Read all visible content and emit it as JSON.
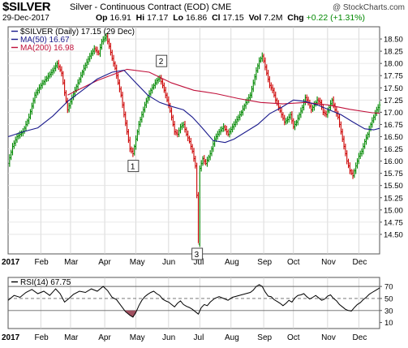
{
  "header": {
    "symbol": "$SILVER",
    "description": "Silver - Continuous Contract (EOD)",
    "exchange": "CME",
    "brand": "@ StockCharts.com",
    "date": "29-Dec-2017",
    "open_label": "Op",
    "open": "16.91",
    "high_label": "Hi",
    "high": "17.17",
    "low_label": "Lo",
    "low": "16.86",
    "close_label": "Cl",
    "close": "17.15",
    "volume_label": "Vol",
    "volume": "7.2M",
    "change_label": "Chg",
    "change": "+0.22 (+1.31%)"
  },
  "colors": {
    "price_bars_up": "#008800",
    "price_bars_down": "#cc0000",
    "ma50": "#1a1a8c",
    "ma200": "#c0103a",
    "rsi_line": "#000000",
    "rsi_oversold_fill": "#a05060"
  },
  "chart_data": [
    {
      "type": "line",
      "title": "$SILVER (Daily) 17.15 (29 Dec)",
      "legend": [
        {
          "name": "$SILVER (Daily) 17.15 (29 Dec)",
          "color": "#1a1a8c"
        },
        {
          "name": "MA(50) 16.67",
          "color": "#1a1a8c"
        },
        {
          "name": "MA(200) 16.98",
          "color": "#c0103a"
        }
      ],
      "ylim": [
        14.1,
        18.75
      ],
      "yticks": [
        "14.50",
        "14.75",
        "15.00",
        "15.25",
        "15.50",
        "15.75",
        "16.00",
        "16.25",
        "16.50",
        "16.75",
        "17.00",
        "17.25",
        "17.50",
        "17.75",
        "18.00",
        "18.25",
        "18.50"
      ],
      "xticks": [
        "2017",
        "Feb",
        "Mar",
        "Apr",
        "May",
        "Jun",
        "Jul",
        "Aug",
        "Sep",
        "Oct",
        "Nov",
        "Dec"
      ],
      "x_index": [
        0,
        22,
        42,
        65,
        86,
        108,
        129,
        150,
        172,
        192,
        215,
        236,
        250
      ],
      "price": [
        [
          0,
          15.95
        ],
        [
          3,
          16.3
        ],
        [
          6,
          16.5
        ],
        [
          10,
          16.6
        ],
        [
          14,
          16.9
        ],
        [
          18,
          17.35
        ],
        [
          22,
          17.55
        ],
        [
          26,
          17.7
        ],
        [
          30,
          17.85
        ],
        [
          33,
          18.0
        ],
        [
          36,
          17.8
        ],
        [
          38,
          17.4
        ],
        [
          40,
          17.05
        ],
        [
          43,
          17.3
        ],
        [
          47,
          17.6
        ],
        [
          51,
          17.9
        ],
        [
          55,
          18.15
        ],
        [
          58,
          18.3
        ],
        [
          61,
          18.2
        ],
        [
          63,
          18.45
        ],
        [
          66,
          18.55
        ],
        [
          68,
          18.35
        ],
        [
          70,
          18.1
        ],
        [
          72,
          17.9
        ],
        [
          74,
          17.6
        ],
        [
          76,
          17.35
        ],
        [
          78,
          16.95
        ],
        [
          80,
          16.6
        ],
        [
          82,
          16.25
        ],
        [
          84,
          16.15
        ],
        [
          86,
          16.45
        ],
        [
          88,
          16.75
        ],
        [
          90,
          16.95
        ],
        [
          92,
          17.15
        ],
        [
          94,
          17.3
        ],
        [
          96,
          17.45
        ],
        [
          98,
          17.55
        ],
        [
          100,
          17.65
        ],
        [
          102,
          17.7
        ],
        [
          104,
          17.55
        ],
        [
          106,
          17.35
        ],
        [
          108,
          17.15
        ],
        [
          110,
          16.9
        ],
        [
          112,
          16.6
        ],
        [
          114,
          16.55
        ],
        [
          116,
          16.7
        ],
        [
          118,
          16.75
        ],
        [
          120,
          16.55
        ],
        [
          122,
          16.4
        ],
        [
          124,
          16.2
        ],
        [
          126,
          15.9
        ],
        [
          127,
          15.3
        ],
        [
          128,
          14.3
        ],
        [
          129,
          15.85
        ],
        [
          131,
          16.05
        ],
        [
          133,
          15.95
        ],
        [
          136,
          16.15
        ],
        [
          139,
          16.45
        ],
        [
          142,
          16.6
        ],
        [
          145,
          16.7
        ],
        [
          148,
          16.55
        ],
        [
          151,
          16.7
        ],
        [
          154,
          16.85
        ],
        [
          157,
          17.0
        ],
        [
          160,
          17.2
        ],
        [
          163,
          17.35
        ],
        [
          165,
          17.6
        ],
        [
          167,
          17.85
        ],
        [
          169,
          18.05
        ],
        [
          171,
          18.15
        ],
        [
          172,
          18.05
        ],
        [
          174,
          17.8
        ],
        [
          176,
          17.55
        ],
        [
          178,
          17.45
        ],
        [
          180,
          17.25
        ],
        [
          182,
          17.1
        ],
        [
          184,
          16.95
        ],
        [
          186,
          16.8
        ],
        [
          188,
          16.85
        ],
        [
          190,
          16.95
        ],
        [
          192,
          16.7
        ],
        [
          194,
          16.8
        ],
        [
          196,
          16.95
        ],
        [
          198,
          17.1
        ],
        [
          200,
          17.3
        ],
        [
          202,
          17.2
        ],
        [
          204,
          17.05
        ],
        [
          206,
          17.15
        ],
        [
          208,
          17.25
        ],
        [
          210,
          17.2
        ],
        [
          212,
          17.0
        ],
        [
          214,
          16.95
        ],
        [
          216,
          17.1
        ],
        [
          218,
          17.25
        ],
        [
          220,
          17.05
        ],
        [
          222,
          16.9
        ],
        [
          224,
          16.6
        ],
        [
          226,
          16.3
        ],
        [
          228,
          16.0
        ],
        [
          230,
          15.8
        ],
        [
          232,
          15.7
        ],
        [
          234,
          15.9
        ],
        [
          236,
          16.1
        ],
        [
          238,
          16.2
        ],
        [
          240,
          16.4
        ],
        [
          242,
          16.55
        ],
        [
          244,
          16.75
        ],
        [
          246,
          16.9
        ],
        [
          248,
          17.05
        ],
        [
          250,
          17.15
        ]
      ],
      "ma50": [
        [
          0,
          16.5
        ],
        [
          10,
          16.6
        ],
        [
          20,
          16.68
        ],
        [
          30,
          16.92
        ],
        [
          40,
          17.22
        ],
        [
          50,
          17.45
        ],
        [
          60,
          17.68
        ],
        [
          70,
          17.82
        ],
        [
          78,
          17.86
        ],
        [
          86,
          17.6
        ],
        [
          94,
          17.35
        ],
        [
          102,
          17.2
        ],
        [
          110,
          17.12
        ],
        [
          118,
          17.05
        ],
        [
          124,
          16.9
        ],
        [
          130,
          16.7
        ],
        [
          138,
          16.42
        ],
        [
          146,
          16.38
        ],
        [
          152,
          16.45
        ],
        [
          160,
          16.6
        ],
        [
          168,
          16.75
        ],
        [
          176,
          16.97
        ],
        [
          184,
          17.1
        ],
        [
          192,
          17.25
        ],
        [
          200,
          17.22
        ],
        [
          208,
          17.15
        ],
        [
          216,
          17.05
        ],
        [
          224,
          16.95
        ],
        [
          232,
          16.8
        ],
        [
          240,
          16.66
        ],
        [
          246,
          16.64
        ],
        [
          250,
          16.67
        ]
      ],
      "ma200": [
        [
          40,
          17.35
        ],
        [
          60,
          17.65
        ],
        [
          80,
          17.88
        ],
        [
          95,
          17.82
        ],
        [
          110,
          17.6
        ],
        [
          125,
          17.45
        ],
        [
          140,
          17.38
        ],
        [
          155,
          17.28
        ],
        [
          170,
          17.2
        ],
        [
          185,
          17.17
        ],
        [
          200,
          17.2
        ],
        [
          215,
          17.15
        ],
        [
          230,
          17.06
        ],
        [
          245,
          16.99
        ],
        [
          250,
          16.98
        ]
      ],
      "annotations": [
        {
          "label": "1",
          "x": 84,
          "y": 15.9
        },
        {
          "label": "2",
          "x": 103,
          "y": 18.05
        },
        {
          "label": "3",
          "x": 127,
          "y": 14.1
        }
      ]
    },
    {
      "type": "line",
      "title": "RSI(14) 67.75",
      "legend": [
        {
          "name": "RSI(14) 67.75",
          "color": "#000000"
        }
      ],
      "ylim": [
        0,
        85
      ],
      "yticks": [
        "10",
        "30",
        "50",
        "70"
      ],
      "xticks": [
        "2017",
        "Feb",
        "Mar",
        "Apr",
        "May",
        "Jun",
        "Jul",
        "Aug",
        "Sep",
        "Oct",
        "Nov",
        "Dec"
      ],
      "reference_lines": [
        30,
        50,
        70
      ],
      "rsi": [
        [
          0,
          47
        ],
        [
          4,
          55
        ],
        [
          8,
          52
        ],
        [
          12,
          60
        ],
        [
          16,
          65
        ],
        [
          20,
          58
        ],
        [
          24,
          62
        ],
        [
          28,
          55
        ],
        [
          32,
          66
        ],
        [
          35,
          58
        ],
        [
          38,
          44
        ],
        [
          41,
          50
        ],
        [
          44,
          57
        ],
        [
          48,
          62
        ],
        [
          52,
          60
        ],
        [
          56,
          66
        ],
        [
          60,
          62
        ],
        [
          64,
          70
        ],
        [
          67,
          63
        ],
        [
          70,
          52
        ],
        [
          73,
          48
        ],
        [
          76,
          38
        ],
        [
          79,
          28
        ],
        [
          82,
          22
        ],
        [
          84,
          19
        ],
        [
          86,
          27
        ],
        [
          88,
          38
        ],
        [
          90,
          47
        ],
        [
          92,
          53
        ],
        [
          94,
          57
        ],
        [
          96,
          60
        ],
        [
          98,
          62
        ],
        [
          100,
          58
        ],
        [
          102,
          55
        ],
        [
          104,
          49
        ],
        [
          106,
          46
        ],
        [
          108,
          44
        ],
        [
          110,
          40
        ],
        [
          112,
          36
        ],
        [
          114,
          42
        ],
        [
          116,
          46
        ],
        [
          118,
          40
        ],
        [
          120,
          37
        ],
        [
          122,
          35
        ],
        [
          124,
          32
        ],
        [
          126,
          28
        ],
        [
          128,
          24
        ],
        [
          130,
          35
        ],
        [
          132,
          40
        ],
        [
          134,
          38
        ],
        [
          136,
          44
        ],
        [
          139,
          50
        ],
        [
          142,
          53
        ],
        [
          145,
          50
        ],
        [
          148,
          47
        ],
        [
          151,
          52
        ],
        [
          154,
          54
        ],
        [
          157,
          56
        ],
        [
          160,
          58
        ],
        [
          163,
          60
        ],
        [
          165,
          64
        ],
        [
          167,
          70
        ],
        [
          169,
          73
        ],
        [
          171,
          70
        ],
        [
          173,
          61
        ],
        [
          175,
          54
        ],
        [
          177,
          53
        ],
        [
          179,
          48
        ],
        [
          181,
          45
        ],
        [
          183,
          42
        ],
        [
          185,
          38
        ],
        [
          187,
          42
        ],
        [
          189,
          47
        ],
        [
          191,
          44
        ],
        [
          193,
          51
        ],
        [
          195,
          55
        ],
        [
          197,
          56
        ],
        [
          199,
          58
        ],
        [
          201,
          53
        ],
        [
          203,
          49
        ],
        [
          205,
          52
        ],
        [
          207,
          55
        ],
        [
          209,
          51
        ],
        [
          211,
          47
        ],
        [
          213,
          49
        ],
        [
          215,
          54
        ],
        [
          217,
          56
        ],
        [
          219,
          50
        ],
        [
          221,
          46
        ],
        [
          223,
          40
        ],
        [
          225,
          36
        ],
        [
          227,
          32
        ],
        [
          229,
          30
        ],
        [
          231,
          29
        ],
        [
          233,
          35
        ],
        [
          235,
          40
        ],
        [
          237,
          43
        ],
        [
          239,
          48
        ],
        [
          241,
          52
        ],
        [
          243,
          57
        ],
        [
          245,
          60
        ],
        [
          247,
          63
        ],
        [
          249,
          66
        ],
        [
          250,
          67.75
        ]
      ]
    }
  ]
}
